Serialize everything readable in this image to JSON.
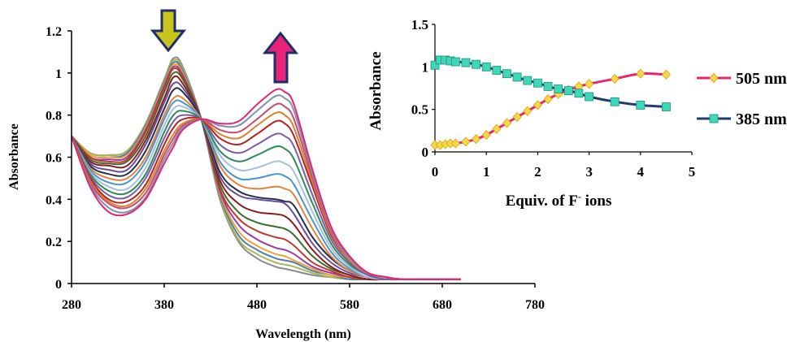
{
  "chart_data": [
    {
      "type": "line",
      "xlabel": "Wavelength (nm)",
      "ylabel": "Absorbance",
      "xlim": [
        280,
        780
      ],
      "ylim": [
        0,
        1.2
      ],
      "xticks": [
        "280",
        "380",
        "480",
        "580",
        "680",
        "780"
      ],
      "yticks": [
        "0",
        "0.2",
        "0.4",
        "0.6",
        "0.8",
        "1",
        "1.2"
      ],
      "grid": false,
      "x": [
        280,
        300,
        320,
        340,
        360,
        380,
        390,
        400,
        420,
        440,
        460,
        480,
        500,
        510,
        520,
        540,
        560,
        580,
        600,
        620,
        640,
        700
      ],
      "series": [
        {
          "color": "#8a8a8a",
          "values": [
            0.7,
            0.62,
            0.61,
            0.63,
            0.76,
            0.97,
            1.07,
            1.03,
            0.78,
            0.4,
            0.2,
            0.12,
            0.08,
            0.07,
            0.06,
            0.04,
            0.03,
            0.02,
            0.02,
            0.02,
            0.02,
            0.02
          ]
        },
        {
          "color": "#a7b556",
          "values": [
            0.7,
            0.62,
            0.61,
            0.63,
            0.76,
            0.97,
            1.06,
            1.02,
            0.78,
            0.41,
            0.21,
            0.14,
            0.1,
            0.09,
            0.08,
            0.05,
            0.03,
            0.02,
            0.02,
            0.02,
            0.02,
            0.02
          ]
        },
        {
          "color": "#4f7ea8",
          "values": [
            0.7,
            0.61,
            0.6,
            0.62,
            0.75,
            0.96,
            1.05,
            1.01,
            0.78,
            0.42,
            0.23,
            0.16,
            0.12,
            0.11,
            0.1,
            0.06,
            0.04,
            0.02,
            0.02,
            0.02,
            0.02,
            0.02
          ]
        },
        {
          "color": "#f0a23a",
          "values": [
            0.7,
            0.61,
            0.6,
            0.61,
            0.74,
            0.95,
            1.04,
            1.0,
            0.78,
            0.43,
            0.25,
            0.18,
            0.14,
            0.13,
            0.11,
            0.07,
            0.04,
            0.03,
            0.02,
            0.02,
            0.02,
            0.02
          ]
        },
        {
          "color": "#9b3ba5",
          "values": [
            0.7,
            0.6,
            0.59,
            0.6,
            0.73,
            0.94,
            1.03,
            0.99,
            0.78,
            0.44,
            0.28,
            0.21,
            0.17,
            0.16,
            0.14,
            0.08,
            0.05,
            0.03,
            0.02,
            0.02,
            0.02,
            0.02
          ]
        },
        {
          "color": "#c0392b",
          "values": [
            0.7,
            0.6,
            0.58,
            0.59,
            0.72,
            0.93,
            1.02,
            0.98,
            0.78,
            0.45,
            0.31,
            0.25,
            0.22,
            0.21,
            0.18,
            0.1,
            0.06,
            0.03,
            0.02,
            0.02,
            0.02,
            0.02
          ]
        },
        {
          "color": "#3d6b2e",
          "values": [
            0.7,
            0.59,
            0.57,
            0.58,
            0.7,
            0.91,
            1.0,
            0.97,
            0.78,
            0.47,
            0.34,
            0.29,
            0.27,
            0.26,
            0.23,
            0.13,
            0.07,
            0.04,
            0.02,
            0.02,
            0.02,
            0.02
          ]
        },
        {
          "color": "#8b1a1a",
          "values": [
            0.7,
            0.58,
            0.56,
            0.56,
            0.68,
            0.88,
            0.98,
            0.95,
            0.78,
            0.49,
            0.38,
            0.34,
            0.33,
            0.32,
            0.28,
            0.16,
            0.08,
            0.04,
            0.02,
            0.02,
            0.02,
            0.02
          ]
        },
        {
          "color": "#6a4c9c",
          "values": [
            0.7,
            0.57,
            0.54,
            0.54,
            0.66,
            0.86,
            0.95,
            0.93,
            0.78,
            0.51,
            0.42,
            0.4,
            0.39,
            0.38,
            0.33,
            0.19,
            0.1,
            0.05,
            0.03,
            0.02,
            0.02,
            0.02
          ]
        },
        {
          "color": "#1f2f4f",
          "values": [
            0.7,
            0.56,
            0.52,
            0.52,
            0.63,
            0.83,
            0.92,
            0.91,
            0.78,
            0.53,
            0.44,
            0.41,
            0.4,
            0.39,
            0.37,
            0.22,
            0.12,
            0.06,
            0.03,
            0.02,
            0.02,
            0.02
          ]
        },
        {
          "color": "#e6803a",
          "values": [
            0.7,
            0.55,
            0.5,
            0.5,
            0.6,
            0.8,
            0.88,
            0.88,
            0.78,
            0.56,
            0.47,
            0.45,
            0.46,
            0.45,
            0.42,
            0.26,
            0.13,
            0.06,
            0.03,
            0.02,
            0.02,
            0.02
          ]
        },
        {
          "color": "#4a96c8",
          "values": [
            0.7,
            0.54,
            0.48,
            0.48,
            0.58,
            0.78,
            0.86,
            0.86,
            0.78,
            0.58,
            0.5,
            0.5,
            0.52,
            0.51,
            0.47,
            0.3,
            0.15,
            0.07,
            0.03,
            0.02,
            0.02,
            0.02
          ]
        },
        {
          "color": "#a5bfdc",
          "values": [
            0.7,
            0.53,
            0.46,
            0.45,
            0.55,
            0.75,
            0.83,
            0.84,
            0.78,
            0.61,
            0.54,
            0.55,
            0.58,
            0.57,
            0.53,
            0.34,
            0.17,
            0.08,
            0.03,
            0.02,
            0.02,
            0.02
          ]
        },
        {
          "color": "#2e8b57",
          "values": [
            0.7,
            0.52,
            0.44,
            0.43,
            0.52,
            0.72,
            0.8,
            0.82,
            0.78,
            0.63,
            0.58,
            0.61,
            0.65,
            0.64,
            0.59,
            0.38,
            0.19,
            0.09,
            0.04,
            0.02,
            0.02,
            0.02
          ]
        },
        {
          "color": "#7c5ba6",
          "values": [
            0.7,
            0.51,
            0.42,
            0.41,
            0.5,
            0.69,
            0.77,
            0.8,
            0.78,
            0.66,
            0.62,
            0.66,
            0.71,
            0.7,
            0.65,
            0.42,
            0.21,
            0.1,
            0.04,
            0.02,
            0.02,
            0.02
          ]
        },
        {
          "color": "#b22222",
          "values": [
            0.7,
            0.5,
            0.4,
            0.39,
            0.47,
            0.66,
            0.74,
            0.78,
            0.78,
            0.69,
            0.66,
            0.71,
            0.77,
            0.76,
            0.7,
            0.46,
            0.23,
            0.11,
            0.05,
            0.03,
            0.02,
            0.02
          ]
        },
        {
          "color": "#d9822b",
          "values": [
            0.7,
            0.49,
            0.39,
            0.37,
            0.45,
            0.63,
            0.71,
            0.76,
            0.78,
            0.71,
            0.69,
            0.75,
            0.81,
            0.8,
            0.74,
            0.48,
            0.24,
            0.11,
            0.05,
            0.03,
            0.02,
            0.02
          ]
        },
        {
          "color": "#c94b6d",
          "values": [
            0.7,
            0.48,
            0.38,
            0.36,
            0.43,
            0.61,
            0.69,
            0.75,
            0.78,
            0.73,
            0.72,
            0.78,
            0.85,
            0.84,
            0.78,
            0.5,
            0.25,
            0.12,
            0.05,
            0.03,
            0.02,
            0.02
          ]
        },
        {
          "color": "#7a93b5",
          "values": [
            0.7,
            0.47,
            0.36,
            0.34,
            0.41,
            0.59,
            0.67,
            0.74,
            0.78,
            0.75,
            0.75,
            0.82,
            0.89,
            0.88,
            0.82,
            0.52,
            0.26,
            0.12,
            0.05,
            0.03,
            0.02,
            0.02
          ]
        },
        {
          "color": "#e8246e",
          "values": [
            0.7,
            0.46,
            0.34,
            0.33,
            0.4,
            0.57,
            0.65,
            0.73,
            0.78,
            0.76,
            0.77,
            0.85,
            0.92,
            0.91,
            0.85,
            0.54,
            0.27,
            0.13,
            0.05,
            0.03,
            0.02,
            0.02
          ]
        }
      ]
    },
    {
      "type": "line",
      "xlabel": "Equiv. of F",
      "xlabel_sup": "-",
      "xlabel_tail": " ions",
      "ylabel": "Absorbance",
      "xlim": [
        0,
        5
      ],
      "ylim": [
        0,
        1.5
      ],
      "xticks": [
        "0",
        "1",
        "2",
        "3",
        "4",
        "5"
      ],
      "yticks": [
        "0",
        "0.5",
        "1",
        "1.5"
      ],
      "grid": false,
      "legend": "right",
      "series": [
        {
          "name": "505 nm",
          "color": "#e8246e",
          "marker": "diamond",
          "marker_color": "#f5d74a",
          "x": [
            0,
            0.1,
            0.2,
            0.3,
            0.4,
            0.6,
            0.8,
            1.0,
            1.2,
            1.4,
            1.6,
            1.8,
            2.0,
            2.2,
            2.4,
            2.6,
            2.8,
            3.0,
            3.5,
            4.0,
            4.5
          ],
          "values": [
            0.08,
            0.08,
            0.09,
            0.1,
            0.1,
            0.12,
            0.15,
            0.2,
            0.27,
            0.34,
            0.41,
            0.48,
            0.55,
            0.62,
            0.68,
            0.73,
            0.77,
            0.8,
            0.86,
            0.92,
            0.91
          ]
        },
        {
          "name": "385 nm",
          "color": "#1f3b6f",
          "marker": "square",
          "marker_color": "#3fd7b8",
          "x": [
            0,
            0.1,
            0.2,
            0.3,
            0.4,
            0.6,
            0.8,
            1.0,
            1.2,
            1.4,
            1.6,
            1.8,
            2.0,
            2.2,
            2.4,
            2.6,
            2.8,
            3.0,
            3.5,
            4.0,
            4.5
          ],
          "values": [
            1.02,
            1.08,
            1.08,
            1.07,
            1.06,
            1.05,
            1.03,
            1.0,
            0.96,
            0.92,
            0.88,
            0.84,
            0.81,
            0.77,
            0.74,
            0.72,
            0.69,
            0.65,
            0.59,
            0.55,
            0.53
          ]
        }
      ]
    }
  ],
  "annotations": {
    "down_arrow_color": "#c9c41b",
    "up_arrow_color": "#e8247a",
    "arrow_outline": "#1f2f66"
  }
}
